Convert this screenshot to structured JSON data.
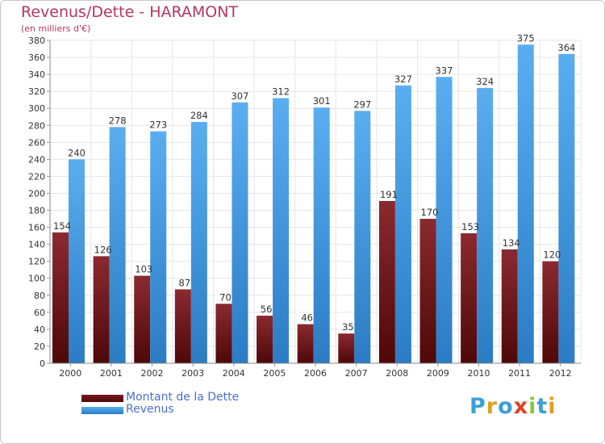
{
  "chart_data": {
    "type": "bar",
    "title": "Revenus/Dette - HARAMONT",
    "subtitle": "(en milliers d'€)",
    "categories": [
      "2000",
      "2001",
      "2002",
      "2003",
      "2004",
      "2005",
      "2006",
      "2007",
      "2008",
      "2009",
      "2010",
      "2011",
      "2012"
    ],
    "series": [
      {
        "name": "Montant de la Dette",
        "values": [
          154,
          126,
          103,
          87,
          70,
          56,
          46,
          35,
          191,
          170,
          153,
          134,
          120
        ],
        "color": "#7a1a1f"
      },
      {
        "name": "Revenus",
        "values": [
          240,
          278,
          273,
          284,
          307,
          312,
          301,
          297,
          327,
          337,
          324,
          375,
          364
        ],
        "color": "#4a9fe3"
      }
    ],
    "ylim": [
      0,
      380
    ],
    "ytick_step": 20,
    "grid": true,
    "legend": "bottom-left"
  },
  "logo": {
    "letters": [
      {
        "ch": "P",
        "color": "#3aa0d8"
      },
      {
        "ch": "r",
        "color": "#e0a020"
      },
      {
        "ch": "o",
        "color": "#3aa0d8"
      },
      {
        "ch": "x",
        "color": "#e04020"
      },
      {
        "ch": "i",
        "color": "#8cc63f"
      },
      {
        "ch": "t",
        "color": "#3aa0d8"
      },
      {
        "ch": "i",
        "color": "#e0a020"
      }
    ]
  }
}
